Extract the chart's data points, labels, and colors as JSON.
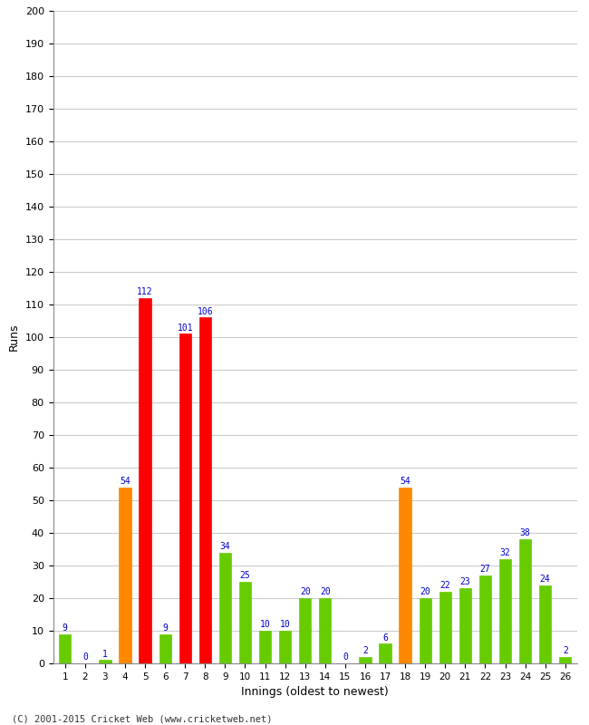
{
  "innings": [
    1,
    2,
    3,
    4,
    5,
    6,
    7,
    8,
    9,
    10,
    11,
    12,
    13,
    14,
    15,
    16,
    17,
    18,
    19,
    20,
    21,
    22,
    23,
    24,
    25,
    26
  ],
  "values": [
    9,
    0,
    1,
    54,
    112,
    9,
    101,
    106,
    34,
    25,
    10,
    10,
    20,
    20,
    0,
    2,
    6,
    54,
    20,
    22,
    23,
    27,
    32,
    38,
    24,
    2
  ],
  "colors": [
    "#66cc00",
    "#66cc00",
    "#66cc00",
    "#ff8800",
    "#ff0000",
    "#66cc00",
    "#ff0000",
    "#ff0000",
    "#66cc00",
    "#66cc00",
    "#66cc00",
    "#66cc00",
    "#66cc00",
    "#66cc00",
    "#66cc00",
    "#66cc00",
    "#66cc00",
    "#ff8800",
    "#66cc00",
    "#66cc00",
    "#66cc00",
    "#66cc00",
    "#66cc00",
    "#66cc00",
    "#66cc00",
    "#66cc00"
  ],
  "xlabel": "Innings (oldest to newest)",
  "ylabel": "Runs",
  "ylim": [
    0,
    200
  ],
  "yticks": [
    0,
    10,
    20,
    30,
    40,
    50,
    60,
    70,
    80,
    90,
    100,
    110,
    120,
    130,
    140,
    150,
    160,
    170,
    180,
    190,
    200
  ],
  "value_color": "#0000cc",
  "value_fontsize": 7,
  "bg_color": "#ffffff",
  "footer": "(C) 2001-2015 Cricket Web (www.cricketweb.net)",
  "grid_color": "#cccccc",
  "bar_width": 0.6
}
